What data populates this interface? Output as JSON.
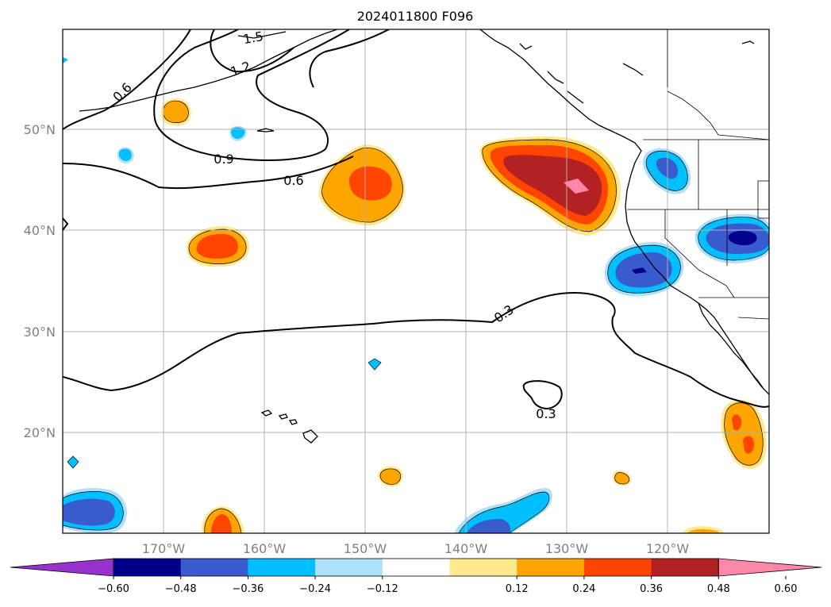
{
  "title": "2024011800 F096",
  "map": {
    "lat_labels": [
      "50°N",
      "40°N",
      "30°N",
      "20°N"
    ],
    "lon_labels": [
      "170°W",
      "160°W",
      "150°W",
      "140°W",
      "130°W",
      "120°W"
    ],
    "contour_labels": [
      "0.6",
      "1.2",
      "1.5",
      "0.9",
      "0.6",
      "0.3",
      "0.3"
    ]
  },
  "colorbar": {
    "labels": [
      "−0.60",
      "−0.48",
      "−0.36",
      "−0.24",
      "−0.12",
      "0.12",
      "0.24",
      "0.36",
      "0.48",
      "0.60"
    ],
    "colors": [
      "#9932cc",
      "#00008b",
      "#3a5bcd",
      "#00bfff",
      "#aee0fa",
      "#ffffff",
      "#ffe98c",
      "#ffa500",
      "#ff4500",
      "#b22222",
      "#ff88aa"
    ]
  },
  "colors": {
    "orange": "#ffa500",
    "red_orange": "#ff4500",
    "dark_red": "#b22222",
    "pink": "#ff88aa",
    "light_yellow": "#ffe98c",
    "deep_sky_blue": "#00bfff",
    "royal_blue": "#3a5bcd",
    "navy": "#00008b",
    "light_blue": "#aee0fa"
  }
}
